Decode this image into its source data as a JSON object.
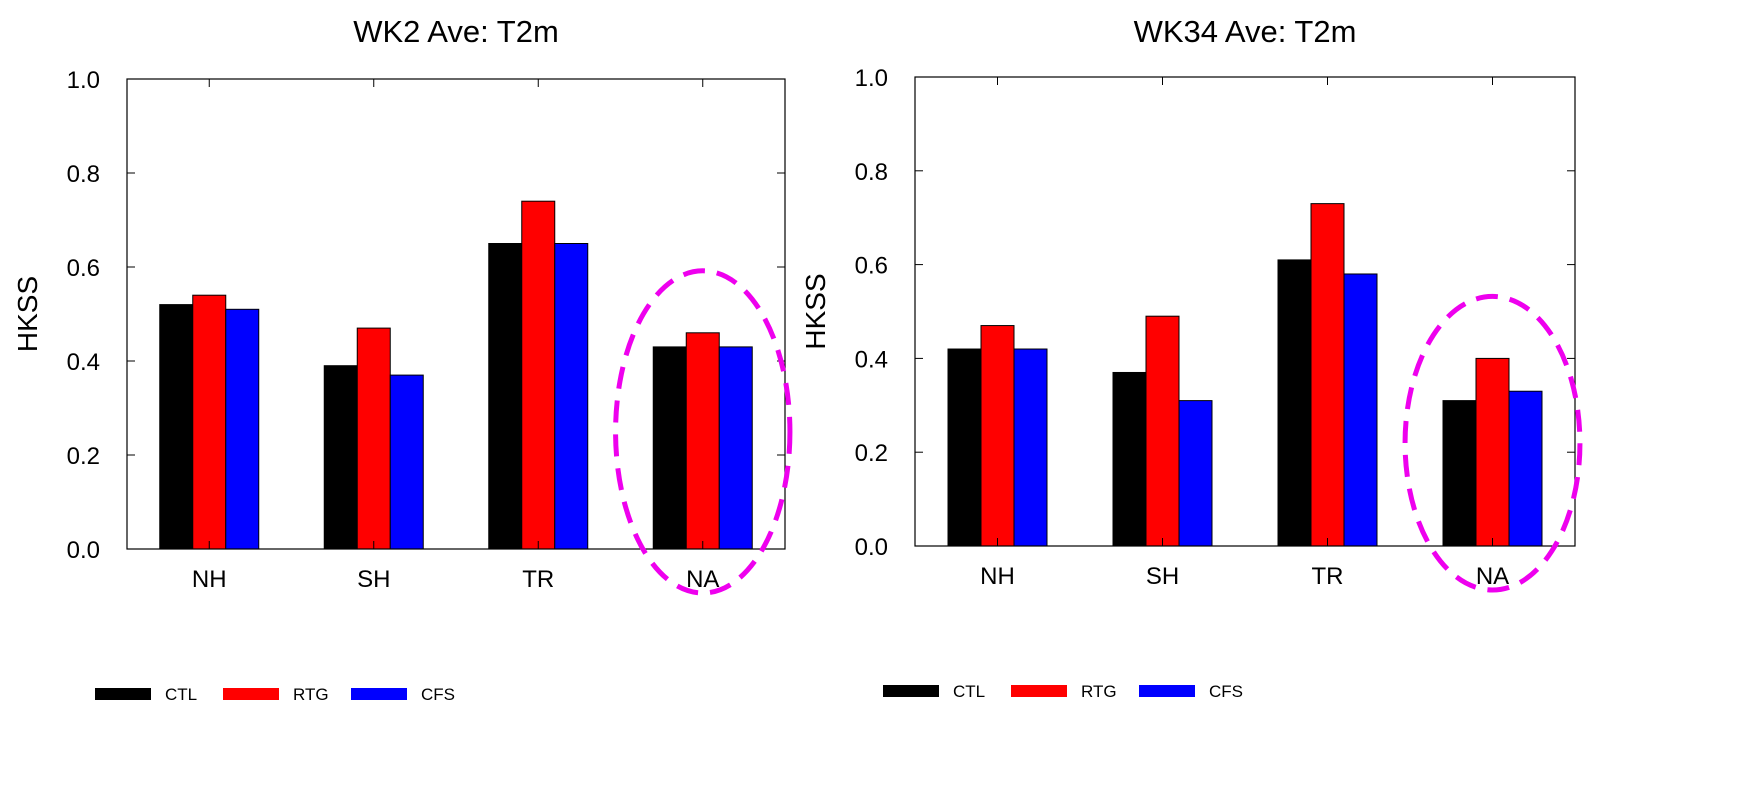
{
  "colors": {
    "CTL": "#000000",
    "RTG": "#ff0000",
    "CFS": "#0000ff",
    "highlight": "#ee00ee"
  },
  "chart_data": [
    {
      "type": "bar",
      "title": "WK2 Ave: T2m",
      "ylabel": "HKSS",
      "ylim": [
        0,
        1
      ],
      "yticks": [
        "0.0",
        "0.2",
        "0.4",
        "0.6",
        "0.8",
        "1.0"
      ],
      "categories": [
        "NH",
        "SH",
        "TR",
        "NA"
      ],
      "series": [
        {
          "name": "CTL",
          "values": [
            0.52,
            0.39,
            0.65,
            0.43
          ]
        },
        {
          "name": "RTG",
          "values": [
            0.54,
            0.47,
            0.74,
            0.46
          ]
        },
        {
          "name": "CFS",
          "values": [
            0.51,
            0.37,
            0.65,
            0.43
          ]
        }
      ],
      "highlighted_category": "NA",
      "legend": [
        "CTL",
        "RTG",
        "CFS"
      ],
      "legend_position": "bottom-left"
    },
    {
      "type": "bar",
      "title": "WK34 Ave: T2m",
      "ylabel": "HKSS",
      "ylim": [
        0,
        1
      ],
      "yticks": [
        "0.0",
        "0.2",
        "0.4",
        "0.6",
        "0.8",
        "1.0"
      ],
      "categories": [
        "NH",
        "SH",
        "TR",
        "NA"
      ],
      "series": [
        {
          "name": "CTL",
          "values": [
            0.42,
            0.37,
            0.61,
            0.31
          ]
        },
        {
          "name": "RTG",
          "values": [
            0.47,
            0.49,
            0.73,
            0.4
          ]
        },
        {
          "name": "CFS",
          "values": [
            0.42,
            0.31,
            0.58,
            0.33
          ]
        }
      ],
      "highlighted_category": "NA",
      "legend": [
        "CTL",
        "RTG",
        "CFS"
      ],
      "legend_position": "bottom-left"
    }
  ]
}
